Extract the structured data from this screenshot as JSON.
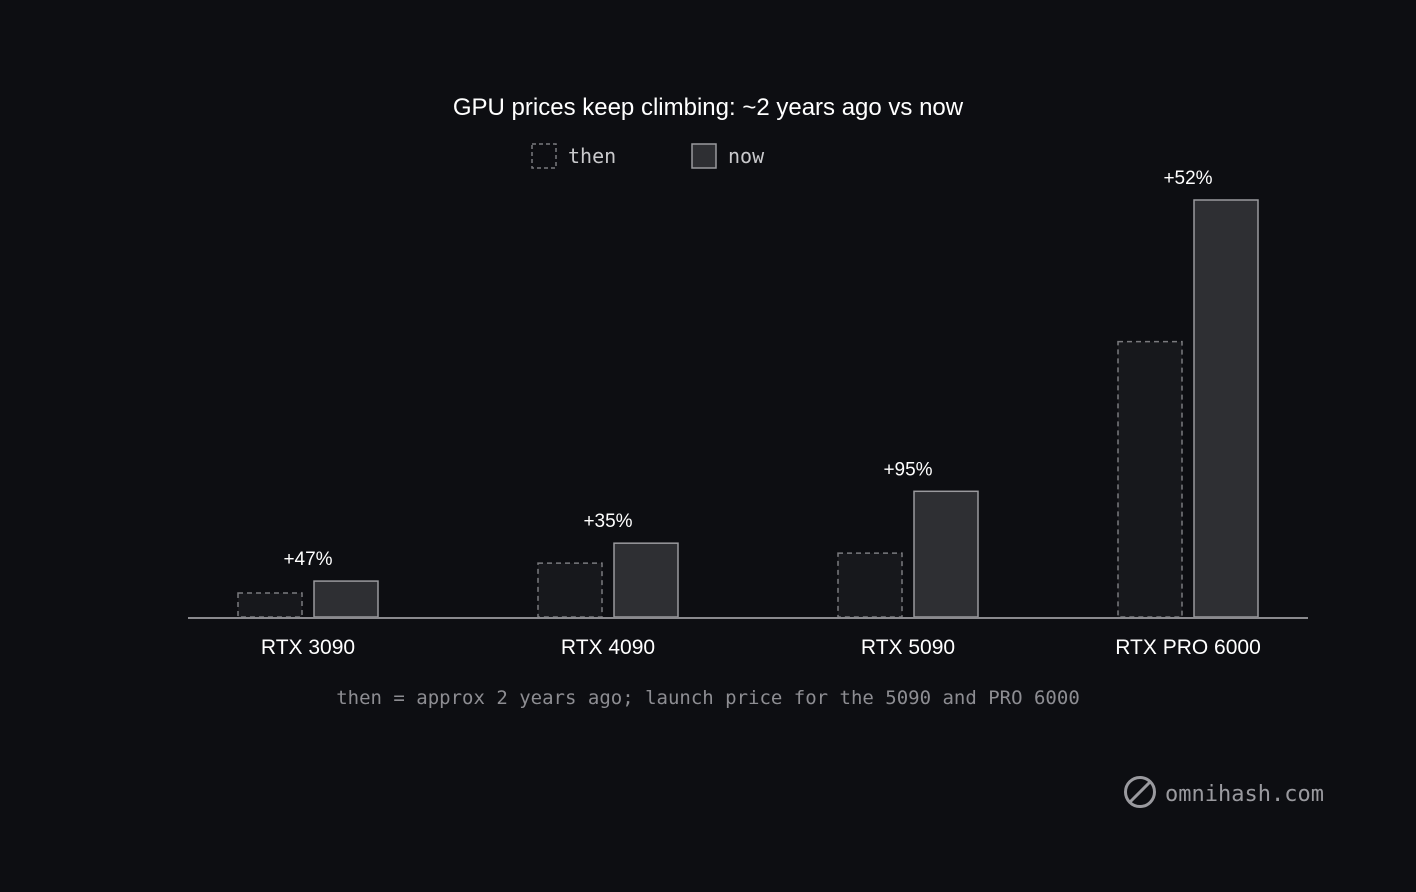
{
  "chart_data": {
    "type": "bar",
    "title": "GPU prices keep climbing: ~2 years ago vs now",
    "categories": [
      "RTX 3090",
      "RTX 4090",
      "RTX 5090",
      "RTX PRO 6000"
    ],
    "series": [
      {
        "name": "then",
        "values": [
          24,
          54,
          64,
          276
        ]
      },
      {
        "name": "now",
        "values": [
          36,
          74,
          126,
          418
        ]
      }
    ],
    "data_labels": [
      "+47%",
      "+35%",
      "+95%",
      "+52%"
    ],
    "ylim": [
      0,
      418
    ],
    "grid": false,
    "legend": "top-center",
    "note": "then = approx 2 years ago; launch price for the 5090 and PRO 6000",
    "colors": {
      "background": "#0d0e12",
      "then_fill": "#17181c",
      "then_stroke": "#7a7a7e",
      "now_fill": "#2e2f33",
      "now_stroke": "#9a9a9e",
      "axis": "#8a8a8e",
      "text": "#ffffff"
    }
  },
  "brand": {
    "icon": "slashed-circle-icon",
    "text": "omnihash.com"
  }
}
